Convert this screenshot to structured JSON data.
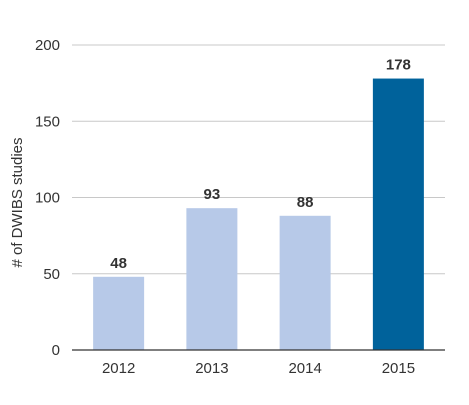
{
  "chart_data": {
    "type": "bar",
    "categories": [
      "2012",
      "2013",
      "2014",
      "2015"
    ],
    "values": [
      48,
      93,
      88,
      178
    ],
    "data_labels": [
      "48",
      "93",
      "88",
      "178"
    ],
    "title": "",
    "xlabel": "",
    "ylabel": "# of DWIBS studies",
    "ylim": [
      0,
      200
    ],
    "y_ticks": [
      0,
      50,
      100,
      150,
      200
    ],
    "y_tick_labels": [
      "0",
      "50",
      "100",
      "150",
      "200"
    ],
    "grid": true,
    "legend": "none",
    "bar_colors": [
      "#b7c9e8",
      "#b7c9e8",
      "#b7c9e8",
      "#00629b"
    ]
  }
}
